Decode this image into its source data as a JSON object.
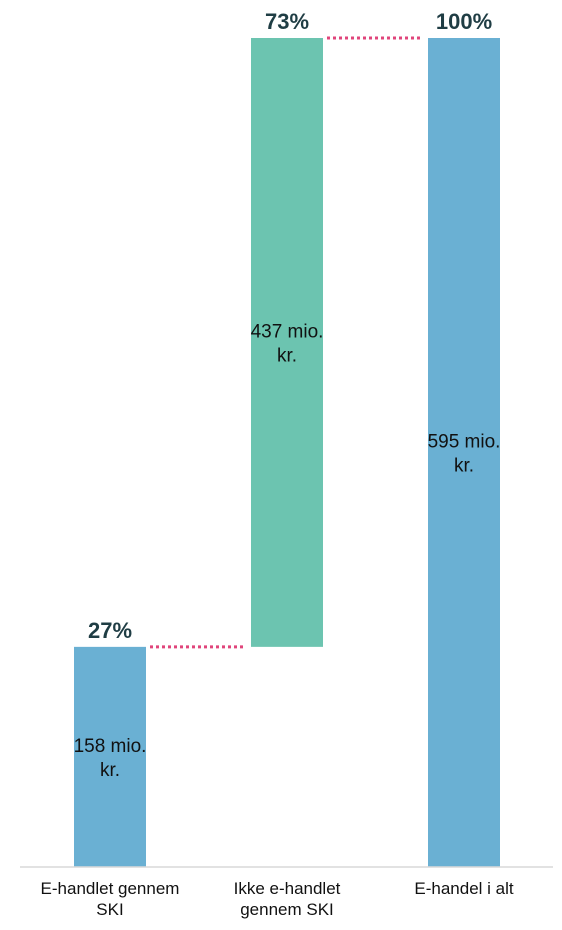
{
  "chart_data": {
    "type": "bar",
    "subtype": "waterfall",
    "categories": [
      [
        "E-handlet gennem",
        "SKI"
      ],
      [
        "Ikke e-handlet",
        "gennem SKI"
      ],
      [
        "E-handel i alt"
      ]
    ],
    "values": [
      158,
      437,
      595
    ],
    "value_labels": [
      [
        "158 mio.",
        "kr."
      ],
      [
        "437 mio.",
        "kr."
      ],
      [
        "595 mio.",
        "kr."
      ]
    ],
    "percent_labels": [
      "27%",
      "73%",
      "100%"
    ],
    "ylim": [
      0,
      595
    ],
    "colors": [
      "#6ab0d3",
      "#6cc4b0",
      "#6ab0d3"
    ],
    "connector_color": "#e0457b",
    "percent_color": "#1f3d44",
    "axis_color": "#d9d9d9",
    "grid": false
  }
}
